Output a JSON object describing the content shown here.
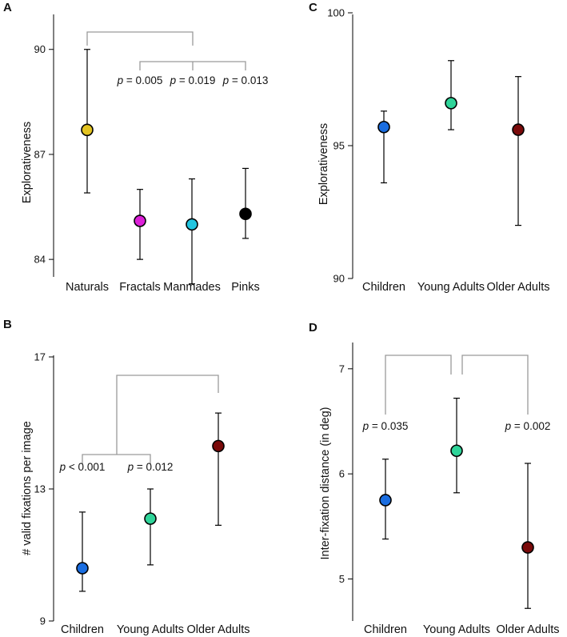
{
  "chart_data": [
    {
      "panel": "A",
      "type": "scatter",
      "title": "",
      "xlabel": "",
      "ylabel": "Explorativeness",
      "ylim": [
        83.5,
        91.0
      ],
      "yticks": [
        84,
        87,
        90
      ],
      "categories": [
        "Naturals",
        "Fractals",
        "Manmades",
        "Pinks"
      ],
      "points": [
        {
          "category": "Naturals",
          "value": 87.7,
          "err_low": 85.9,
          "err_high": 90.0,
          "color": "#e3c321"
        },
        {
          "category": "Fractals",
          "value": 85.1,
          "err_low": 84.0,
          "err_high": 86.0,
          "color": "#dc20d8"
        },
        {
          "category": "Manmades",
          "value": 85.0,
          "err_low": 83.3,
          "err_high": 86.3,
          "color": "#22c5e0"
        },
        {
          "category": "Pinks",
          "value": 85.3,
          "err_low": 84.6,
          "err_high": 86.6,
          "color": "#000000"
        }
      ],
      "comparisons": {
        "outer_group": [
          0,
          1.5
        ],
        "inner_targets": [
          1,
          2,
          3
        ],
        "labels": [
          "p = 0.005",
          "p = 0.019",
          "p = 0.013"
        ]
      }
    },
    {
      "panel": "B",
      "type": "scatter",
      "title": "",
      "xlabel": "",
      "ylabel": "# valid fixations per image",
      "ylim": [
        9,
        17
      ],
      "yticks": [
        9,
        13,
        17
      ],
      "categories": [
        "Children",
        "Young Adults",
        "Older Adults"
      ],
      "points": [
        {
          "category": "Children",
          "value": 10.6,
          "err_low": 9.9,
          "err_high": 12.3,
          "color": "#1a6de0"
        },
        {
          "category": "Young Adults",
          "value": 12.1,
          "err_low": 10.7,
          "err_high": 13.0,
          "color": "#2fd499"
        },
        {
          "category": "Older Adults",
          "value": 14.3,
          "err_low": 11.9,
          "err_high": 15.3,
          "color": "#7a0a0a"
        }
      ],
      "comparisons": {
        "outer_group": [
          0.5,
          2
        ],
        "inner_targets": [
          0,
          1
        ],
        "labels": [
          "p < 0.001",
          "p = 0.012"
        ]
      }
    },
    {
      "panel": "C",
      "type": "scatter",
      "title": "",
      "xlabel": "",
      "ylabel": "Explorativeness",
      "ylim": [
        90,
        100
      ],
      "yticks": [
        90,
        95,
        100
      ],
      "categories": [
        "Children",
        "Young Adults",
        "Older Adults"
      ],
      "points": [
        {
          "category": "Children",
          "value": 95.7,
          "err_low": 93.6,
          "err_high": 96.3,
          "color": "#1a6de0"
        },
        {
          "category": "Young Adults",
          "value": 96.6,
          "err_low": 95.6,
          "err_high": 98.2,
          "color": "#2fd499"
        },
        {
          "category": "Older Adults",
          "value": 95.6,
          "err_low": 92.0,
          "err_high": 97.6,
          "color": "#7a0a0a"
        }
      ]
    },
    {
      "panel": "D",
      "type": "scatter",
      "title": "",
      "xlabel": "",
      "ylabel": "Inter-fixation distance (in deg)",
      "ylim": [
        4.6,
        7.25
      ],
      "yticks": [
        5,
        6,
        7
      ],
      "categories": [
        "Children",
        "Young Adults",
        "Older Adults"
      ],
      "points": [
        {
          "category": "Children",
          "value": 5.75,
          "err_low": 5.38,
          "err_high": 6.14,
          "color": "#1a6de0"
        },
        {
          "category": "Young Adults",
          "value": 6.22,
          "err_low": 5.82,
          "err_high": 6.72,
          "color": "#2fd499"
        },
        {
          "category": "Older Adults",
          "value": 5.3,
          "err_low": 4.72,
          "err_high": 6.1,
          "color": "#7a0a0a"
        }
      ],
      "comparisons": {
        "pairs": [
          [
            0,
            1
          ],
          [
            1,
            2
          ]
        ],
        "labels": [
          "p = 0.035",
          "p = 0.002"
        ]
      }
    }
  ]
}
